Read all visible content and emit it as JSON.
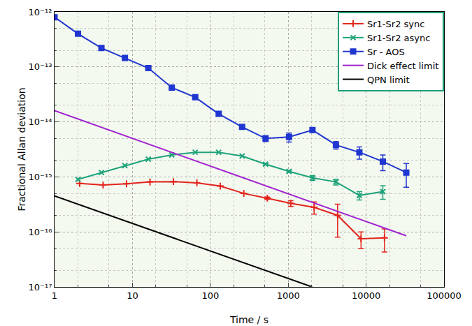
{
  "chart_data": {
    "type": "line",
    "x_label": "Time / s",
    "y_label": "Fractional Allan deviation",
    "log": true,
    "grid": true,
    "legend": "upper right",
    "xlim": [
      1,
      100000
    ],
    "ylim": [
      1e-17,
      1e-12
    ],
    "xticks": [
      1,
      10,
      100,
      1000,
      10000,
      100000
    ],
    "yticks": [
      {
        "value": 1e-17,
        "label": "10⁻¹⁷"
      },
      {
        "value": 1e-16,
        "label": "10⁻¹⁶"
      },
      {
        "value": 1e-15,
        "label": "10⁻¹⁵"
      },
      {
        "value": 1e-14,
        "label": "10⁻¹⁴"
      },
      {
        "value": 1e-13,
        "label": "10⁻¹³"
      },
      {
        "value": 1e-12,
        "label": "10⁻¹²"
      }
    ],
    "series": [
      {
        "name": "Sr1-Sr2 sync",
        "color": "#e3261e",
        "marker": "plus",
        "line_style": "solid",
        "x": [
          2.1,
          4.2,
          8.4,
          16.8,
          33.6,
          67.2,
          134,
          269,
          538,
          1075,
          2150,
          4301,
          8602,
          17203
        ],
        "values": [
          7.6e-16,
          7.1e-16,
          7.5e-16,
          8.1e-16,
          8.2e-16,
          7.8e-16,
          6.8e-16,
          5e-16,
          4.1e-16,
          3.3e-16,
          2.8e-16,
          2e-16,
          7.5e-17,
          7.8e-17
        ],
        "errors": [
          null,
          null,
          null,
          null,
          null,
          null,
          null,
          null,
          2e-17,
          4e-17,
          7e-17,
          1.2e-16,
          2.5e-17,
          3.5e-17
        ]
      },
      {
        "name": "Sr1-Sr2 async",
        "color": "#1ea27a",
        "marker": "x",
        "line_style": "solid",
        "x": [
          2,
          4,
          8,
          16,
          32,
          64,
          128,
          256,
          512,
          1024,
          2048,
          4096,
          8192,
          16384
        ],
        "values": [
          9e-16,
          1.2e-15,
          1.6e-15,
          2.1e-15,
          2.5e-15,
          2.8e-15,
          2.8e-15,
          2.4e-15,
          1.7e-15,
          1.26e-15,
          9.6e-16,
          8.1e-16,
          4.6e-16,
          5.4e-16
        ],
        "errors": [
          null,
          null,
          null,
          null,
          null,
          null,
          null,
          null,
          5e-17,
          6e-17,
          1e-16,
          1e-16,
          8e-17,
          1.5e-16
        ]
      },
      {
        "name": "Sr - AOS",
        "color": "#2036d0",
        "marker": "square",
        "line_style": "solid",
        "x": [
          1,
          2,
          4,
          8,
          16,
          32,
          64,
          128,
          256,
          512,
          1024,
          2048,
          4096,
          8192,
          16384,
          32768
        ],
        "values": [
          8e-13,
          4e-13,
          2.2e-13,
          1.45e-13,
          9.5e-14,
          4.2e-14,
          2.8e-14,
          1.4e-14,
          8.1e-15,
          5e-15,
          5.3e-15,
          7.1e-15,
          3.8e-15,
          2.8e-15,
          1.9e-15,
          1.2e-15
        ],
        "errors": [
          null,
          null,
          null,
          null,
          null,
          null,
          null,
          null,
          6e-16,
          6e-16,
          1e-15,
          6e-16,
          6e-16,
          7e-16,
          6e-16,
          5.5e-16
        ]
      },
      {
        "name": "Dick effect limit",
        "color": "#a020d0",
        "marker": "none",
        "line_style": "solid",
        "x": [
          1,
          32768
        ],
        "values": [
          1.6e-14,
          8.5e-17
        ]
      },
      {
        "name": "QPN limit",
        "color": "#000000",
        "marker": "none",
        "line_style": "solid",
        "x": [
          1,
          2025
        ],
        "values": [
          4.5e-16,
          1e-17
        ]
      }
    ]
  }
}
